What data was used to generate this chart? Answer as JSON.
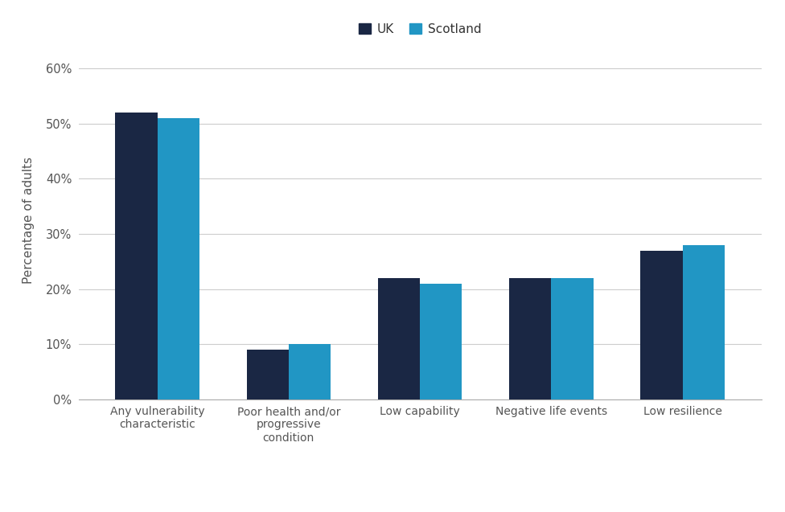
{
  "categories": [
    "Any vulnerability\ncharacteristic",
    "Poor health and/or\nprogressive\ncondition",
    "Low capability",
    "Negative life events",
    "Low resilience"
  ],
  "uk_values": [
    52,
    9,
    22,
    22,
    27
  ],
  "scotland_values": [
    51,
    10,
    21,
    22,
    28
  ],
  "uk_color": "#1a2744",
  "scotland_color": "#2196c4",
  "ylabel": "Percentage of adults",
  "ylim": [
    0,
    65
  ],
  "yticks": [
    0,
    10,
    20,
    30,
    40,
    50,
    60
  ],
  "ytick_labels": [
    "0%",
    "10%",
    "20%",
    "30%",
    "40%",
    "50%",
    "60%"
  ],
  "legend_labels": [
    "UK",
    "Scotland"
  ],
  "bar_width": 0.32,
  "background_color": "#ffffff"
}
